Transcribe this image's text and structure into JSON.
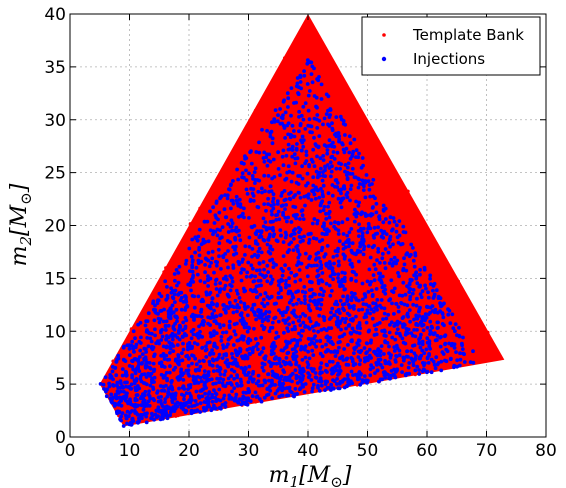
{
  "chart_data": {
    "type": "scatter",
    "title": "",
    "xlabel": "m_1[M_⊙]",
    "ylabel": "m_2[M_⊙]",
    "xlabel_parts": {
      "base": "m",
      "sub": "1",
      "bracket_open": "[",
      "mass": "M",
      "mass_sub": "⊙",
      "bracket_close": "]"
    },
    "ylabel_parts": {
      "base": "m",
      "sub": "2",
      "bracket_open": "[",
      "mass": "M",
      "mass_sub": "⊙",
      "bracket_close": "]"
    },
    "xlim": [
      0,
      80
    ],
    "ylim": [
      0,
      40
    ],
    "xticks": [
      "0",
      "10",
      "20",
      "30",
      "40",
      "50",
      "60",
      "70",
      "80"
    ],
    "yticks": [
      "0",
      "5",
      "10",
      "15",
      "20",
      "25",
      "30",
      "35",
      "40"
    ],
    "grid": true,
    "legend_position": "top-right",
    "series": [
      {
        "name": "Template Bank",
        "color": "#ff0000",
        "region_vertices": [
          [
            40,
            40
          ],
          [
            73,
            7.3
          ],
          [
            9,
            1
          ],
          [
            5,
            5
          ]
        ]
      },
      {
        "name": "Injections",
        "color": "#0000ff",
        "region_vertices": [
          [
            40,
            36
          ],
          [
            69,
            6.9
          ],
          [
            9,
            1
          ],
          [
            5,
            5
          ]
        ]
      }
    ]
  }
}
